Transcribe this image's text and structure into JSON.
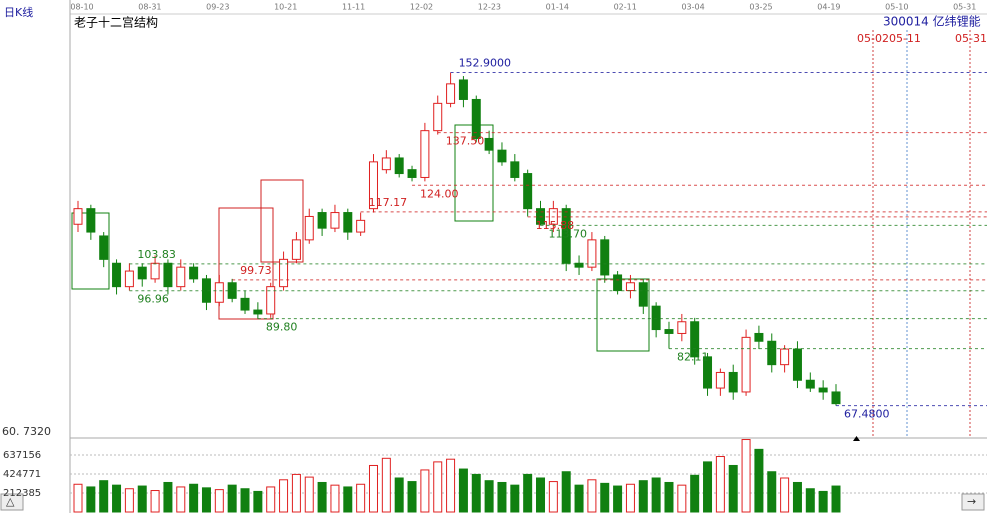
{
  "chart_data": {
    "type": "candlestick",
    "panel_label": "日K线",
    "title": "老子十二宫结构",
    "stock": "300014 亿纬锂能",
    "date_labels": [
      "08-10",
      "08-31",
      "09-23",
      "10-21",
      "11-11",
      "12-02",
      "12-23",
      "01-14",
      "02-11",
      "03-04",
      "03-25",
      "04-19",
      "05-10",
      "05-31"
    ],
    "future_labels": [
      "05-0205-11",
      "05-31"
    ],
    "ylim": [
      {
        "value": 60.732,
        "label": "60. 7320"
      },
      167.4
    ],
    "open": [
      114,
      118,
      111,
      104,
      98,
      103,
      100,
      104,
      98,
      103,
      100,
      94,
      99,
      95,
      92,
      91,
      98,
      105,
      110,
      117,
      113,
      117,
      112,
      118,
      128,
      131,
      128,
      126,
      138,
      145,
      151,
      146,
      136,
      133,
      130,
      127,
      118,
      114,
      118,
      104,
      103,
      110,
      101,
      97,
      99,
      93,
      87,
      86,
      89,
      80,
      72,
      76,
      71,
      86,
      84,
      78,
      82,
      74,
      72,
      71
    ],
    "close": [
      118,
      112,
      105,
      98,
      102,
      100,
      104,
      98,
      103,
      100,
      94,
      99,
      95,
      92,
      91,
      98,
      105,
      110,
      116,
      113,
      117,
      112,
      115,
      130,
      131,
      127,
      126,
      138,
      145,
      150,
      146,
      136,
      133,
      130,
      126,
      118,
      114,
      118,
      104,
      103,
      110,
      101,
      97,
      99,
      93,
      87,
      86,
      89,
      80,
      72,
      76,
      71,
      85,
      84,
      78,
      82,
      74,
      72,
      71,
      68
    ],
    "high": [
      120,
      119,
      112,
      105,
      104,
      104,
      106,
      105,
      105,
      104,
      101,
      101,
      100,
      97,
      94,
      99,
      107,
      112,
      118,
      118,
      119,
      118,
      117,
      132,
      133,
      132,
      129,
      140,
      147,
      152.9,
      152,
      147,
      138,
      135,
      132,
      128,
      120,
      120,
      119,
      106,
      112,
      111,
      102,
      101,
      100,
      94,
      89,
      91,
      90,
      81,
      77,
      78,
      87,
      88,
      86,
      83,
      84,
      76,
      74,
      73
    ],
    "low": [
      112,
      110,
      103,
      96,
      97,
      98,
      99,
      96,
      97,
      99,
      92,
      93,
      94,
      91,
      89.8,
      90,
      97,
      104,
      109,
      111,
      112,
      110,
      111,
      117,
      127,
      126,
      125,
      125,
      137,
      144,
      144,
      135,
      132,
      129,
      125,
      116,
      113.7,
      112,
      102,
      101,
      102,
      99,
      96,
      95,
      91,
      85,
      82.11,
      84,
      78,
      70,
      70,
      69,
      70,
      82,
      76,
      76,
      72,
      71,
      69,
      67.48
    ],
    "volume": [
      310000,
      280000,
      350000,
      300000,
      260000,
      290000,
      240000,
      330000,
      280000,
      310000,
      270000,
      250000,
      300000,
      260000,
      230000,
      280000,
      360000,
      420000,
      390000,
      330000,
      300000,
      280000,
      310000,
      520000,
      600000,
      380000,
      340000,
      470000,
      560000,
      590000,
      480000,
      420000,
      350000,
      330000,
      300000,
      420000,
      380000,
      340000,
      450000,
      300000,
      360000,
      320000,
      290000,
      310000,
      350000,
      380000,
      330000,
      300000,
      410000,
      560000,
      620000,
      520000,
      810000,
      700000,
      450000,
      380000,
      330000,
      260000,
      230000,
      290000
    ],
    "vol_ylim": [
      0,
      827000
    ],
    "vol_ticks": [
      212385,
      424771,
      637156
    ],
    "annotations": [
      {
        "value": 115.88,
        "label": "115.88",
        "color": "#d02020"
      },
      {
        "value": 96.96,
        "label": "96.96",
        "color": "#208020"
      },
      {
        "value": 124.0,
        "label": "124.00",
        "color": "#d02020"
      },
      {
        "value": 117.17,
        "label": "117.17",
        "color": "#d02020"
      },
      {
        "value": 103.83,
        "label": "103.83",
        "color": "#208020"
      },
      {
        "value": 89.8,
        "label": "89.80",
        "color": "#208020"
      },
      {
        "value": 152.9,
        "label": "152.9000",
        "color": "#2020a0"
      },
      {
        "value": 137.5,
        "label": "137.50",
        "color": "#d02020"
      },
      {
        "value": 113.7,
        "label": "113.70",
        "color": "#208020"
      },
      {
        "value": 99.73,
        "label": "99.73",
        "color": "#d02020"
      },
      {
        "value": 82.11,
        "label": "82.11",
        "color": "#208020"
      },
      {
        "value": 67.48,
        "label": "67.4800",
        "color": "#2020a0"
      }
    ],
    "up_color": "#e02020",
    "down_color": "#108010"
  }
}
